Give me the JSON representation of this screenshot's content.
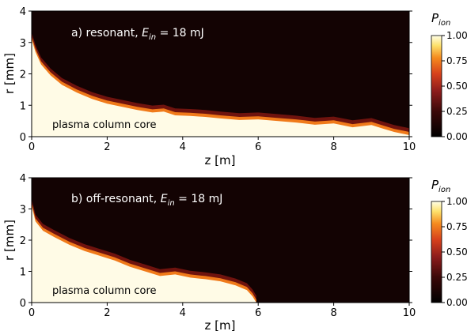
{
  "chart_data": [
    {
      "type": "heatmap",
      "annotation_prefix": "a) resonant, ",
      "energy_symbol": "E",
      "energy_subscript": "in",
      "energy_value": " = 18 mJ",
      "region_label": "plasma column core",
      "xlabel": "z [m]",
      "ylabel": "r [mm]",
      "xlim": [
        0,
        10
      ],
      "ylim": [
        0,
        4
      ],
      "xticks": [
        0,
        2,
        4,
        6,
        8,
        10
      ],
      "yticks": [
        0,
        1,
        2,
        3,
        4
      ],
      "colorbar": {
        "title_symbol": "P",
        "title_subscript": "ion",
        "range": [
          0,
          1
        ],
        "ticks": [
          "0.00",
          "0.25",
          "0.50",
          "0.75",
          "1.00"
        ]
      },
      "boundary": {
        "z": [
          0,
          0.1,
          0.25,
          0.5,
          0.8,
          1.2,
          1.6,
          2.0,
          2.4,
          2.8,
          3.2,
          3.5,
          3.8,
          4.2,
          4.6,
          5.0,
          5.5,
          6.0,
          6.5,
          7.0,
          7.5,
          8.0,
          8.5,
          9.0,
          9.3,
          9.6,
          10.0
        ],
        "r": [
          3.1,
          2.7,
          2.3,
          1.95,
          1.65,
          1.4,
          1.2,
          1.05,
          0.95,
          0.85,
          0.77,
          0.8,
          0.68,
          0.66,
          0.63,
          0.58,
          0.53,
          0.55,
          0.5,
          0.45,
          0.38,
          0.42,
          0.3,
          0.37,
          0.26,
          0.15,
          0.05
        ]
      }
    },
    {
      "type": "heatmap",
      "annotation_prefix": "b) off-resonant, ",
      "energy_symbol": "E",
      "energy_subscript": "in",
      "energy_value": " = 18 mJ",
      "region_label": "plasma column core",
      "xlabel": "z [m]",
      "ylabel": "r [mm]",
      "xlim": [
        0,
        10
      ],
      "ylim": [
        0,
        4
      ],
      "xticks": [
        0,
        2,
        4,
        6,
        8,
        10
      ],
      "yticks": [
        0,
        1,
        2,
        3,
        4
      ],
      "colorbar": {
        "title_symbol": "P",
        "title_subscript": "ion",
        "range": [
          0,
          1
        ],
        "ticks": [
          "0.00",
          "0.25",
          "0.50",
          "0.75",
          "1.00"
        ]
      },
      "boundary": {
        "z": [
          0,
          0.1,
          0.3,
          0.6,
          1.0,
          1.4,
          1.8,
          2.2,
          2.6,
          3.0,
          3.4,
          3.8,
          4.2,
          4.6,
          5.0,
          5.4,
          5.7,
          5.85,
          5.95
        ],
        "r": [
          3.1,
          2.6,
          2.3,
          2.1,
          1.85,
          1.65,
          1.5,
          1.35,
          1.15,
          1.0,
          0.85,
          0.9,
          0.8,
          0.75,
          0.68,
          0.55,
          0.4,
          0.2,
          0.0
        ]
      }
    }
  ]
}
